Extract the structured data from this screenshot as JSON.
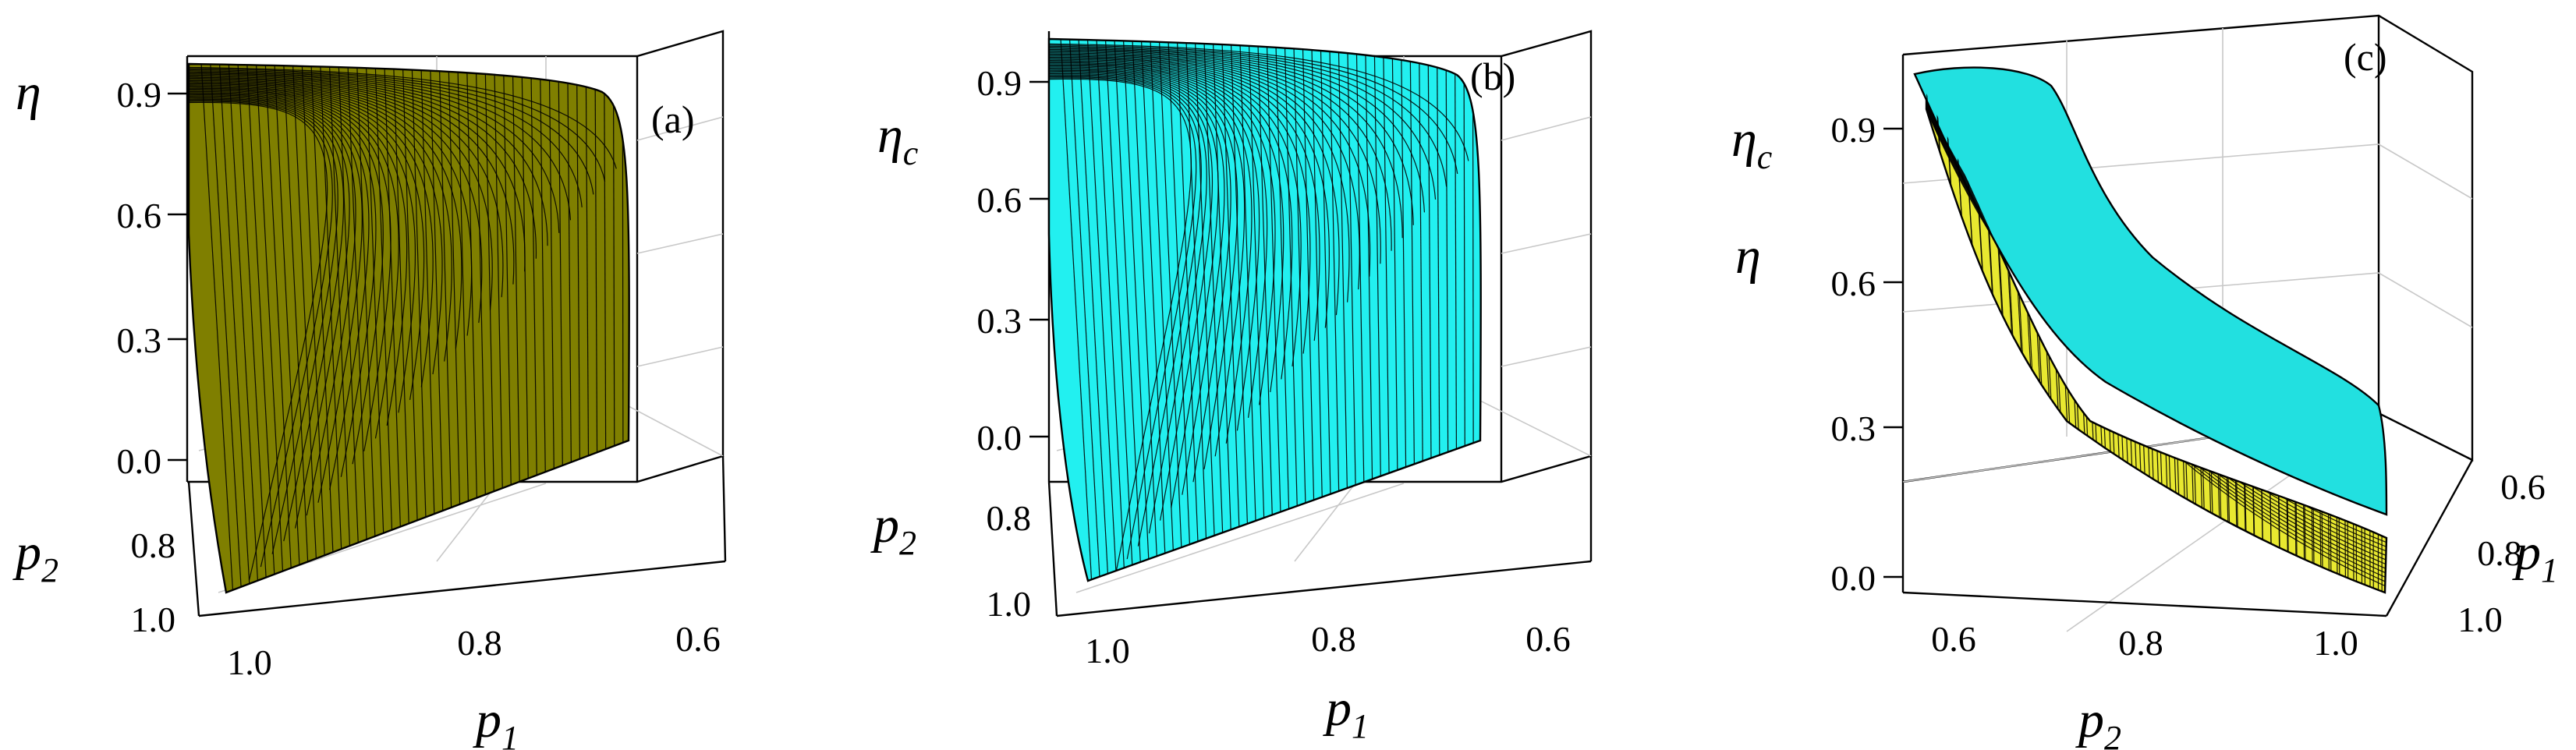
{
  "chart_data": [
    {
      "type": "surface3d",
      "panel_label": "(a)",
      "zlabel": "η",
      "xlabel": "p",
      "xlabel_sub": "1",
      "ylabel": "p",
      "ylabel_sub": "2",
      "z_ticks": [
        "0.0",
        "0.3",
        "0.6",
        "0.9"
      ],
      "x_ticks": [
        "1.0",
        "0.8",
        "0.6"
      ],
      "y_ticks": [
        "0.8",
        "1.0"
      ],
      "zlim": [
        0,
        1
      ],
      "surface_color": "#7f7f00"
    },
    {
      "type": "surface3d",
      "panel_label": "(b)",
      "zlabel": "η",
      "zlabel_sub": "c",
      "xlabel": "p",
      "xlabel_sub": "1",
      "ylabel": "p",
      "ylabel_sub": "2",
      "z_ticks": [
        "0.0",
        "0.3",
        "0.6",
        "0.9"
      ],
      "x_ticks": [
        "1.0",
        "0.8",
        "0.6"
      ],
      "y_ticks": [
        "0.8",
        "1.0"
      ],
      "zlim": [
        0,
        1
      ],
      "surface_color": "#22f0f0"
    },
    {
      "type": "surface3d",
      "panel_label": "(c)",
      "zlabel_top": "η",
      "zlabel_top_sub": "c",
      "zlabel_bottom": "η",
      "xlabel": "p",
      "xlabel_sub": "2",
      "ylabel": "p",
      "ylabel_sub": "1",
      "z_ticks": [
        "0.0",
        "0.3",
        "0.6",
        "0.9"
      ],
      "x_ticks": [
        "0.6",
        "0.8",
        "1.0"
      ],
      "y_ticks": [
        "0.6",
        "0.8",
        "1.0"
      ],
      "zlim": [
        0,
        1
      ],
      "surface_colors": [
        "#22e0e0",
        "#e8e830"
      ]
    }
  ]
}
